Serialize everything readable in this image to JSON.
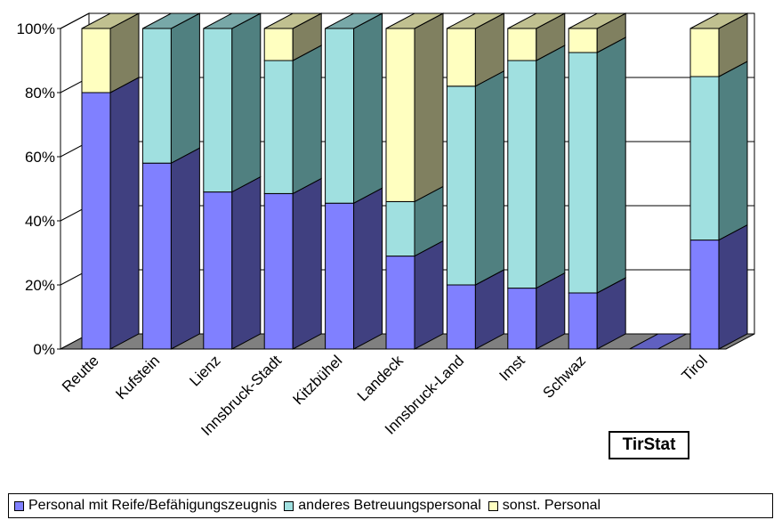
{
  "chart_data": {
    "type": "bar",
    "stacked": "percent",
    "three_d": true,
    "categories": [
      "Reutte",
      "Kufstein",
      "Lienz",
      "Innsbruck-Stadt",
      "Kitzbühel",
      "Landeck",
      "Innsbruck-Land",
      "Imst",
      "Schwaz",
      "",
      "Tirol"
    ],
    "series": [
      {
        "name": "Personal mit Reife/Befähigungszeugnis",
        "color": "#8080ff",
        "values": [
          80,
          58,
          49,
          48.5,
          45.5,
          29,
          20,
          19,
          17.5,
          0,
          34
        ]
      },
      {
        "name": "anderes Betreuungspersonal",
        "color": "#a0e0e0",
        "values": [
          0,
          42,
          51,
          41.5,
          54.5,
          17,
          62,
          71,
          75,
          0,
          51
        ]
      },
      {
        "name": "sonst. Personal",
        "color": "#ffffc0",
        "values": [
          20,
          0,
          0,
          10,
          0,
          54,
          18,
          10,
          7.5,
          0,
          15
        ]
      }
    ],
    "yaxis": {
      "ticks": [
        "0%",
        "20%",
        "40%",
        "60%",
        "80%",
        "100%"
      ],
      "ylim": [
        0,
        100
      ]
    },
    "grid": true,
    "legend_position": "bottom"
  },
  "badge": "TirStat"
}
